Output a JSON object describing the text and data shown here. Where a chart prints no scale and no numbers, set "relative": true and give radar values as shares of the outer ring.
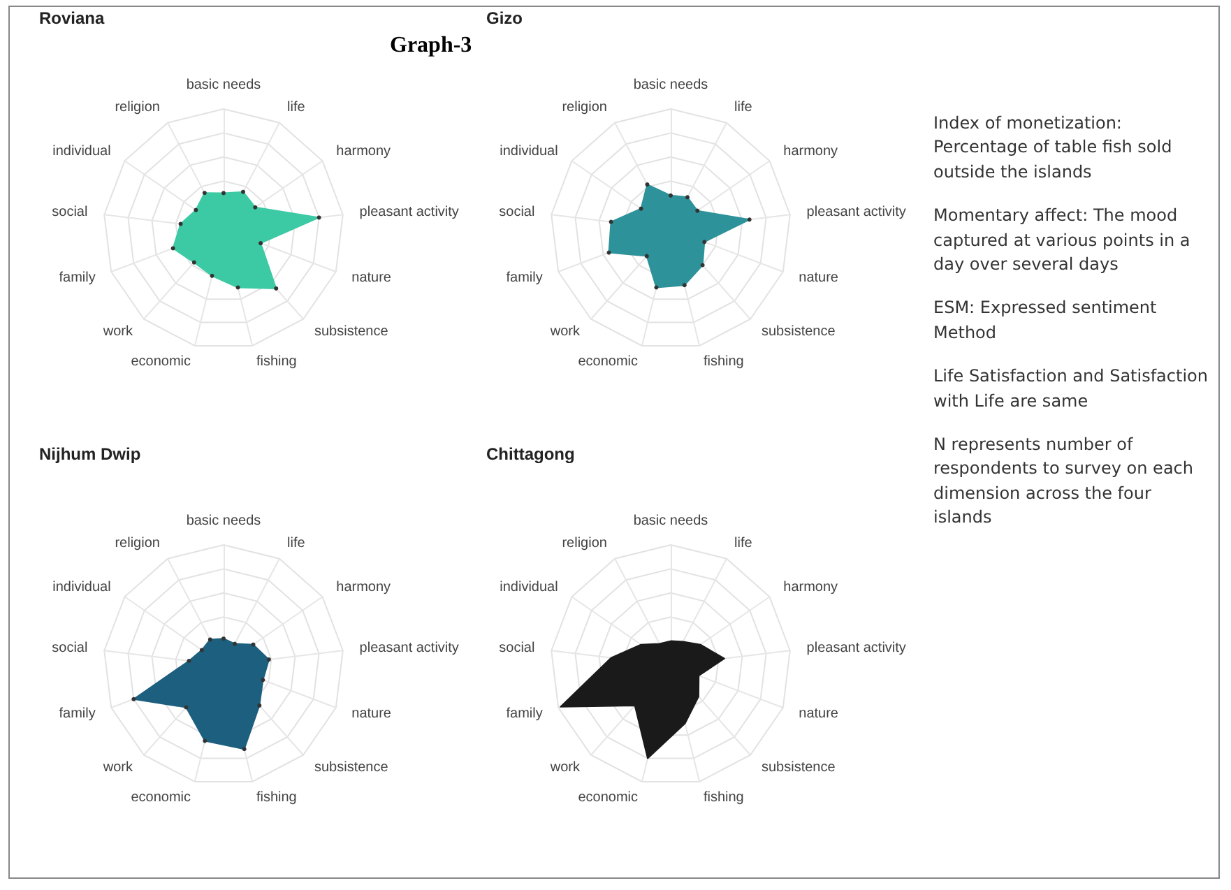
{
  "chart_data": [
    {
      "type": "radar",
      "title": "Roviana",
      "annotations": [
        "Graph-3"
      ],
      "relative": true,
      "marker": "circle",
      "categories": [
        "basic needs",
        "life",
        "harmony",
        "pleasant activity",
        "nature",
        "subsistence",
        "fishing",
        "economic",
        "work",
        "family",
        "social",
        "individual",
        "religion"
      ],
      "series": [
        {
          "color": "#3ccaa5",
          "values": [
            0.3,
            0.35,
            0.32,
            0.8,
            0.33,
            0.66,
            0.5,
            0.4,
            0.37,
            0.45,
            0.36,
            0.28,
            0.34
          ]
        }
      ]
    },
    {
      "type": "radar",
      "title": "Gizo",
      "relative": true,
      "marker": "circle",
      "categories": [
        "basic needs",
        "life",
        "harmony",
        "pleasant activity",
        "nature",
        "subsistence",
        "fishing",
        "economic",
        "work",
        "family",
        "social",
        "individual",
        "religion"
      ],
      "series": [
        {
          "color": "#2e929a",
          "values": [
            0.28,
            0.3,
            0.27,
            0.66,
            0.3,
            0.4,
            0.48,
            0.5,
            0.3,
            0.55,
            0.5,
            0.3,
            0.42
          ]
        }
      ]
    },
    {
      "type": "radar",
      "title": "Nijhum Dwip",
      "relative": true,
      "marker": "circle",
      "categories": [
        "basic needs",
        "life",
        "harmony",
        "pleasant activity",
        "nature",
        "subsistence",
        "fishing",
        "economic",
        "work",
        "family",
        "social",
        "individual",
        "religion"
      ],
      "series": [
        {
          "color": "#1d5f7e",
          "values": [
            0.22,
            0.2,
            0.3,
            0.38,
            0.35,
            0.45,
            0.72,
            0.65,
            0.47,
            0.8,
            0.29,
            0.22,
            0.24
          ]
        }
      ]
    },
    {
      "type": "radar",
      "title": "Chittagong",
      "relative": true,
      "marker": "none",
      "categories": [
        "basic needs",
        "life",
        "harmony",
        "pleasant activity",
        "nature",
        "subsistence",
        "fishing",
        "economic",
        "work",
        "family",
        "social",
        "individual",
        "religion"
      ],
      "series": [
        {
          "color": "#1a1a1a",
          "values": [
            0.2,
            0.22,
            0.3,
            0.45,
            0.25,
            0.35,
            0.5,
            0.8,
            0.45,
            0.98,
            0.5,
            0.3,
            0.2
          ]
        }
      ]
    },
    {
      "type": "other",
      "annotations": [
        "Index of monetization: Percentage of table fish sold outside the islands",
        "Momentary affect: The mood captured at various points in a day over several days",
        "ESM: Expressed sentiment Method",
        "Life Satisfaction and Satisfaction with Life are same",
        "N represents number of respondents to survey on each dimension across the four islands"
      ]
    }
  ]
}
